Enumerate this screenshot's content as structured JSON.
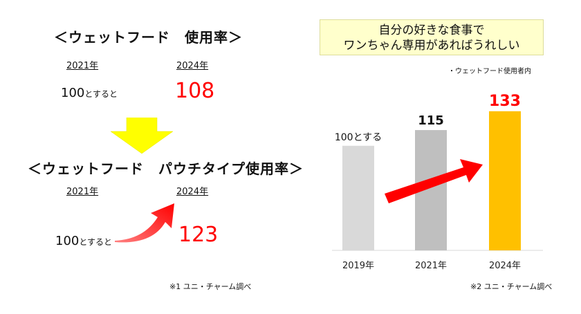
{
  "left": {
    "title1": "＜ウェットフード　使用率＞",
    "title2": "＜ウェットフード　パウチタイプ使用率＞",
    "year_a": "2021年",
    "year_b": "2024年",
    "base_number": "100",
    "base_suffix": "とすると",
    "value1": "108",
    "value2": "123",
    "note": "※1 ユニ・チャーム調べ"
  },
  "right": {
    "callout_line1": "自分の好きな食事で",
    "callout_line2": "ワンちゃん専用があればうれしい",
    "users_note": "・ウェットフード使用者内",
    "note": "※2 ユニ・チャーム調べ"
  },
  "colors": {
    "red": "#ff0000",
    "arrow_yellow": "#ffff00",
    "bar_2019": "#d9d9d9",
    "bar_2021": "#bfbfbf",
    "bar_2024": "#ffc000",
    "callout_bg": "#ffffcc"
  },
  "chart_data": {
    "type": "bar",
    "categories": [
      "2019年",
      "2021年",
      "2024年"
    ],
    "values": [
      100,
      115,
      133
    ],
    "data_labels": [
      "100とする",
      "115",
      "133"
    ],
    "ylim": [
      0,
      160
    ],
    "grid": false,
    "legend": "none"
  }
}
